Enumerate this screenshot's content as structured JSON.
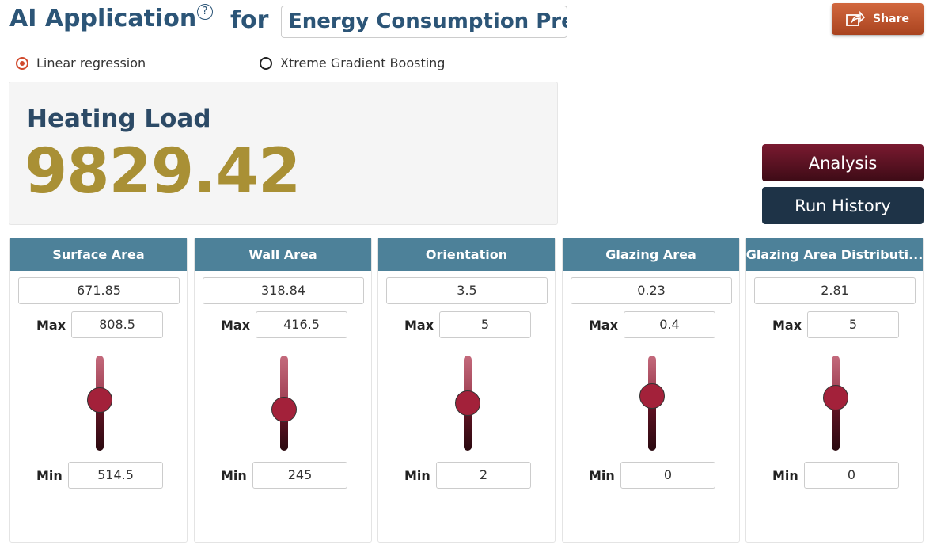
{
  "header": {
    "title": "AI Application",
    "help": "?",
    "for": "for",
    "app_name": "Energy Consumption Pre",
    "share": "Share"
  },
  "models": {
    "options": [
      "Linear regression",
      "Xtreme Gradient Boosting"
    ],
    "selected": 0
  },
  "result": {
    "label": "Heating Load",
    "value": 9829.42
  },
  "buttons": [
    "Analysis",
    "Run History"
  ],
  "max_label": "Max",
  "min_label": "Min",
  "inputs": [
    {
      "name": "Surface Area",
      "value": 671.85,
      "max": 808.5,
      "min": 514.5
    },
    {
      "name": "Wall Area",
      "value": 318.84,
      "max": 416.5,
      "min": 245
    },
    {
      "name": "Orientation",
      "value": 3.5,
      "max": 5,
      "min": 2
    },
    {
      "name": "Glazing Area",
      "value": 0.23,
      "max": 0.4,
      "min": 0
    },
    {
      "name": "Glazing Area Distributi...",
      "value": 2.81,
      "max": 5,
      "min": 0
    }
  ]
}
